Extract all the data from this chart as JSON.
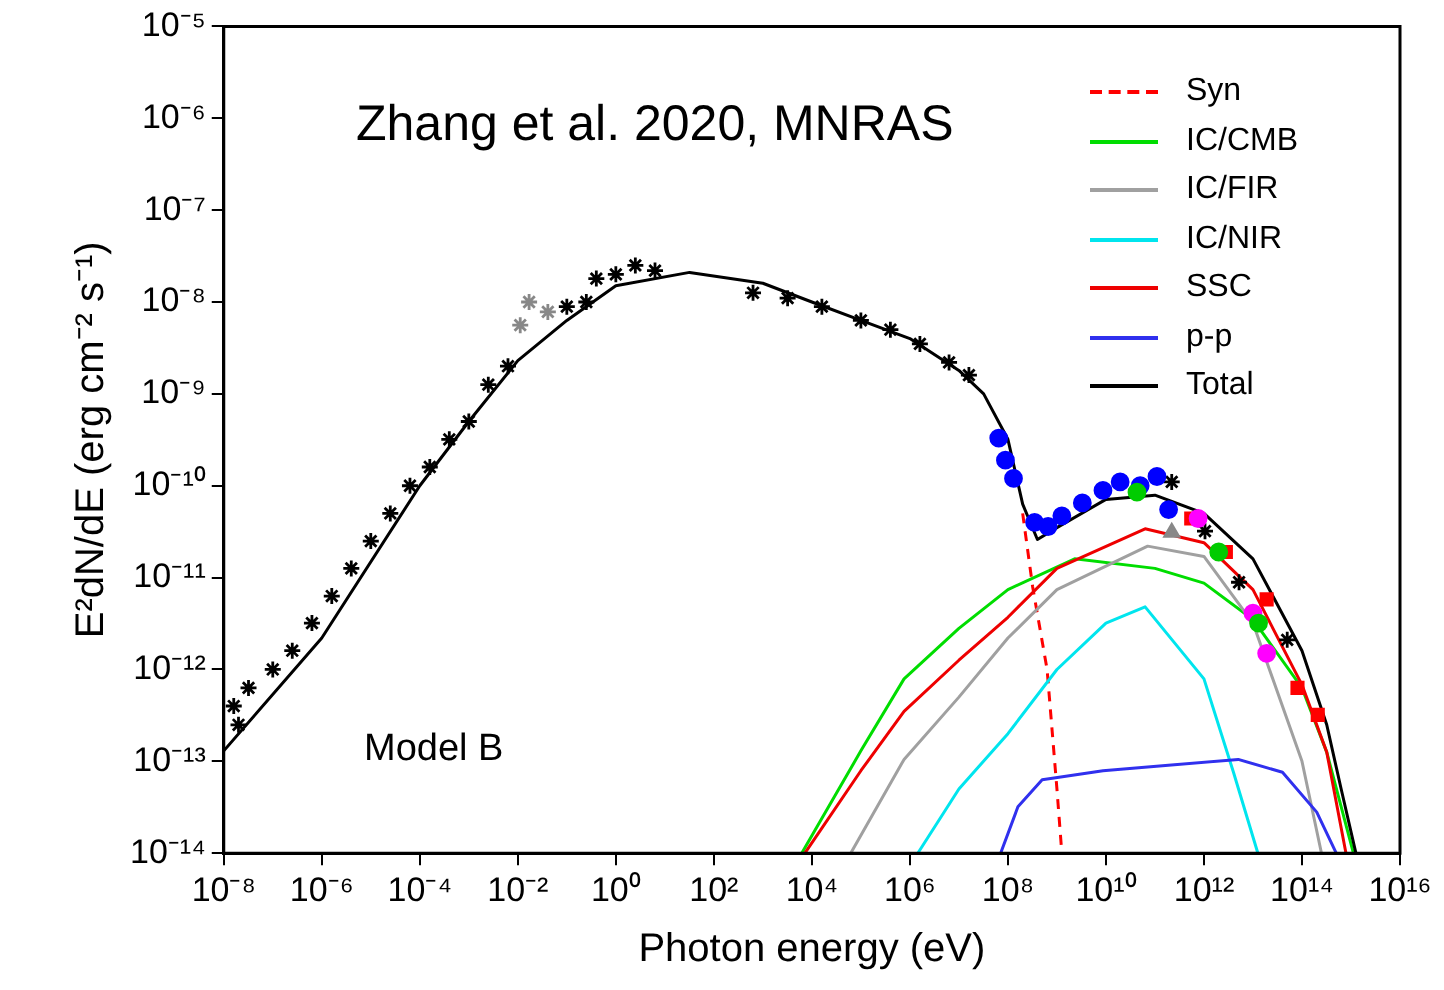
{
  "chart_data": {
    "type": "line",
    "xlabel": "Photon energy (eV)",
    "ylabel": "E²dN/dE (erg cm⁻² s⁻¹)",
    "log": "xy",
    "legend": "top right",
    "grid": false,
    "annotations": [
      "Zhang et al. 2020, MNRAS",
      "Model B"
    ],
    "xlim": [
      1e-08,
      1e+16
    ],
    "ylim": [
      1e-14,
      1e-05
    ],
    "xticks": [
      {
        "value": 1e-08,
        "label": "10⁻⁸"
      },
      {
        "value": 1e-06,
        "label": "10⁻⁶"
      },
      {
        "value": 0.0001,
        "label": "10⁻⁴"
      },
      {
        "value": 0.01,
        "label": "10⁻²"
      },
      {
        "value": 1,
        "label": "10⁰"
      },
      {
        "value": 100,
        "label": "10²"
      },
      {
        "value": 10000.0,
        "label": "10⁴"
      },
      {
        "value": 1000000.0,
        "label": "10⁶"
      },
      {
        "value": 100000000.0,
        "label": "10⁸"
      },
      {
        "value": 10000000000.0,
        "label": "10¹⁰"
      },
      {
        "value": 1000000000000.0,
        "label": "10¹²"
      },
      {
        "value": 100000000000000.0,
        "label": "10¹⁴"
      },
      {
        "value": 1e+16,
        "label": "10¹⁶"
      }
    ],
    "yticks": [
      {
        "value": 1e-14,
        "label": "10⁻¹⁴"
      },
      {
        "value": 1e-13,
        "label": "10⁻¹³"
      },
      {
        "value": 1e-12,
        "label": "10⁻¹²"
      },
      {
        "value": 1e-11,
        "label": "10⁻¹¹"
      },
      {
        "value": 1e-10,
        "label": "10⁻¹⁰"
      },
      {
        "value": 1e-09,
        "label": "10⁻⁹"
      },
      {
        "value": 1e-08,
        "label": "10⁻⁸"
      },
      {
        "value": 1e-07,
        "label": "10⁻⁷"
      },
      {
        "value": 1e-06,
        "label": "10⁻⁶"
      },
      {
        "value": 1e-05,
        "label": "10⁻⁵"
      }
    ],
    "series": [
      {
        "name": "Syn",
        "type": "line",
        "line_style": "dashed",
        "color": "#ff0000",
        "x": [
          200000000.0,
          320000000.0,
          630000000.0,
          1000000000.0,
          1260000000.0
        ],
        "values": [
          5e-11,
          7.9e-12,
          1e-12,
          5e-14,
          1e-14
        ]
      },
      {
        "name": "IC/CMB",
        "type": "line",
        "color": "#00dd00",
        "x": [
          6200.0,
          100000.0,
          760000.0,
          10000000.0,
          100000000.0,
          2300000000.0,
          100000000000.0,
          1000000000000.0,
          10000000000000.0,
          100000000000000.0,
          320000000000000.0,
          1120000000000000.0
        ],
        "values": [
          1e-14,
          1.3e-13,
          7.9e-13,
          2.8e-12,
          7.4e-12,
          1.6e-11,
          1.26e-11,
          8.7e-12,
          3.5e-12,
          6.3e-13,
          1.26e-13,
          1e-14
        ]
      },
      {
        "name": "IC/FIR",
        "type": "line",
        "color": "#a0a0a0",
        "x": [
          62000.0,
          760000.0,
          10000000.0,
          100000000.0,
          1000000000.0,
          71000000000.0,
          1000000000000.0,
          10000000000000.0,
          100000000000000.0,
          250000000000000.0
        ],
        "values": [
          1e-14,
          1.05e-13,
          5e-13,
          2.2e-12,
          7.4e-12,
          2.2e-11,
          1.7e-11,
          3.2e-12,
          1e-13,
          1e-14
        ]
      },
      {
        "name": "IC/NIR",
        "type": "line",
        "color": "#00e5ee",
        "x": [
          1450000.0,
          10000000.0,
          100000000.0,
          1000000000.0,
          10000000000.0,
          63000000000.0,
          1000000000000.0,
          4000000000000.0,
          12600000000000.0
        ],
        "values": [
          1e-14,
          5e-14,
          2e-13,
          1e-12,
          3.2e-12,
          4.8e-12,
          7.9e-13,
          7.6e-14,
          1e-14
        ]
      },
      {
        "name": "SSC",
        "type": "line",
        "color": "#ee0000",
        "x": [
          7200.0,
          100000.0,
          760000.0,
          10000000.0,
          100000000.0,
          1000000000.0,
          63000000000.0,
          1000000000000.0,
          10000000000000.0,
          100000000000000.0,
          320000000000000.0,
          790000000000000.0
        ],
        "values": [
          1e-14,
          7.9e-14,
          3.5e-13,
          1.26e-12,
          3.7e-12,
          1.26e-11,
          3.4e-11,
          2.4e-11,
          7.4e-12,
          6.8e-13,
          1.26e-13,
          1e-14
        ]
      },
      {
        "name": "p-p",
        "type": "line",
        "color": "#3030ee",
        "x": [
          71000000.0,
          160000000.0,
          500000000.0,
          8700000000.0,
          5000000000000.0,
          40000000000000.0,
          200000000000000.0,
          500000000000000.0
        ],
        "values": [
          1e-14,
          3.2e-14,
          6.3e-14,
          7.9e-14,
          1.05e-13,
          7.6e-14,
          2.8e-14,
          1e-14
        ]
      },
      {
        "name": "Total",
        "type": "line",
        "color": "#000000",
        "x": [
          1e-08,
          1e-06,
          0.0001,
          0.001,
          0.01,
          0.1,
          1,
          32,
          1000,
          10000.0,
          100000.0,
          1000000.0,
          10000000.0,
          32000000.0,
          100000000.0,
          200000000.0,
          400000000.0,
          1000000000.0,
          10000000000.0,
          100000000000.0,
          1000000000000.0,
          10000000000000.0,
          100000000000000.0,
          320000000000000.0,
          630000000000000.0,
          1260000000000000.0
        ],
        "values": [
          1.3e-13,
          2.2e-12,
          1e-10,
          5e-10,
          2.3e-09,
          6.3e-09,
          1.5e-08,
          2.1e-08,
          1.6e-08,
          1e-08,
          6.3e-09,
          4e-09,
          1.8e-09,
          1e-09,
          3.2e-10,
          6.3e-11,
          2.6e-11,
          3.5e-11,
          7.1e-11,
          7.9e-11,
          5e-11,
          1.6e-11,
          1.6e-12,
          2.5e-13,
          5e-14,
          1e-14
        ]
      },
      {
        "type": "scatter",
        "marker": "cross",
        "color": "#000000",
        "x": [
          1.6e-08,
          2e-08,
          3.2e-08,
          1e-07,
          2.5e-07,
          6.3e-07,
          1.6e-06,
          4e-06,
          1e-05,
          2.5e-05,
          6.3e-05,
          0.00016,
          0.0004,
          0.001,
          0.0025,
          0.0063,
          0.1,
          0.25,
          0.4,
          1,
          2.5,
          6.3,
          630,
          3200,
          16000.0,
          100000.0,
          400000.0,
          1600000.0,
          6300000.0,
          16000000.0,
          220000000000.0,
          1050000000000.0,
          5200000000000.0,
          50000000000000.0
        ],
        "values": [
          4e-13,
          2.5e-13,
          6.3e-13,
          1e-12,
          1.6e-12,
          3.2e-12,
          6.3e-12,
          1.26e-11,
          2.5e-11,
          5e-11,
          1e-10,
          1.6e-10,
          3.2e-10,
          5e-10,
          1.26e-09,
          2e-09,
          8.9e-09,
          1e-08,
          1.8e-08,
          2e-08,
          2.5e-08,
          2.2e-08,
          1.26e-08,
          1.1e-08,
          8.9e-09,
          6.3e-09,
          5e-09,
          3.5e-09,
          2.2e-09,
          1.6e-09,
          1.1e-10,
          3.2e-11,
          8.9e-12,
          2.1e-12
        ]
      },
      {
        "type": "scatter",
        "marker": "cross",
        "color": "#888888",
        "x": [
          0.0112,
          0.017,
          0.041
        ],
        "values": [
          5.6e-09,
          1e-08,
          7.8e-09
        ]
      },
      {
        "type": "scatter",
        "marker": "circle",
        "color": "#0000ff",
        "x": [
          65000000.0,
          89000000.0,
          130000000.0,
          350000000.0,
          660000000.0,
          1260000000.0,
          3300000000.0,
          8700000000.0,
          19500000000.0,
          50000000000.0,
          110000000000.0,
          190000000000.0
        ],
        "values": [
          3.3e-10,
          1.9e-10,
          1.2e-10,
          4e-11,
          3.6e-11,
          4.7e-11,
          6.5e-11,
          8.9e-11,
          1.1e-10,
          1e-10,
          1.26e-10,
          5.5e-11
        ]
      },
      {
        "type": "scatter",
        "marker": "square",
        "color": "#ff0000",
        "x": [
          550000000000.0,
          2800000000000.0,
          19000000000000.0,
          81000000000000.0,
          210000000000000.0
        ],
        "values": [
          4.4e-11,
          1.9e-11,
          5.8e-12,
          6.3e-13,
          3.2e-13
        ]
      },
      {
        "type": "scatter",
        "marker": "circle",
        "color": "#ff00ff",
        "x": [
          760000000000.0,
          10000000000000.0,
          19000000000000.0
        ],
        "values": [
          4.4e-11,
          4.1e-12,
          1.5e-12
        ]
      },
      {
        "type": "scatter",
        "marker": "circle",
        "color": "#00cc00",
        "x": [
          43000000000.0,
          2000000000000.0,
          13000000000000.0
        ],
        "values": [
          8.5e-11,
          1.9e-11,
          3.2e-12
        ]
      },
      {
        "type": "scatter",
        "marker": "triangle",
        "color": "#888888",
        "x": [
          220000000000.0
        ],
        "values": [
          3.1e-11
        ]
      }
    ]
  }
}
